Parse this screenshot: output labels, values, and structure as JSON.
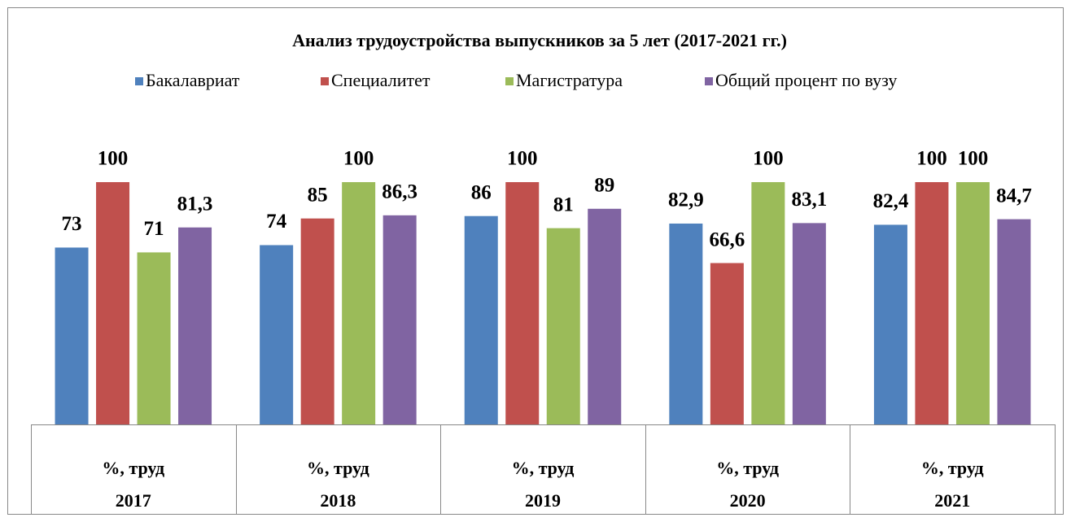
{
  "chart_data": {
    "type": "bar",
    "title": "Анализ трудоустройства выпускников за 5 лет (2017-2021 гг.)",
    "categories": [
      "2017",
      "2018",
      "2019",
      "2020",
      "2021"
    ],
    "category_group_labels": [
      "%, труд",
      "%, труд",
      "%, труд",
      "%, труд",
      "%, труд"
    ],
    "series": [
      {
        "name": "Бакалавриат",
        "color": "#4f81bd",
        "values": [
          73,
          74,
          86,
          82.9,
          82.4
        ],
        "value_labels": [
          "73",
          "74",
          "86",
          "82,9",
          "82,4"
        ]
      },
      {
        "name": "Специалитет",
        "color": "#c0504d",
        "values": [
          100,
          85,
          100,
          66.6,
          100
        ],
        "value_labels": [
          "100",
          "85",
          "100",
          "66,6",
          "100"
        ]
      },
      {
        "name": "Магистратура",
        "color": "#9bbb59",
        "values": [
          71,
          100,
          81,
          100,
          100
        ],
        "value_labels": [
          "71",
          "100",
          "81",
          "100",
          "100"
        ]
      },
      {
        "name": "Общий процент по вузу",
        "color": "#8064a2",
        "values": [
          81.3,
          86.3,
          89,
          83.1,
          84.7
        ],
        "value_labels": [
          "81,3",
          "86,3",
          "89",
          "83,1",
          "84,7"
        ]
      }
    ],
    "ylim": [
      0,
      100
    ],
    "legend": "top"
  }
}
